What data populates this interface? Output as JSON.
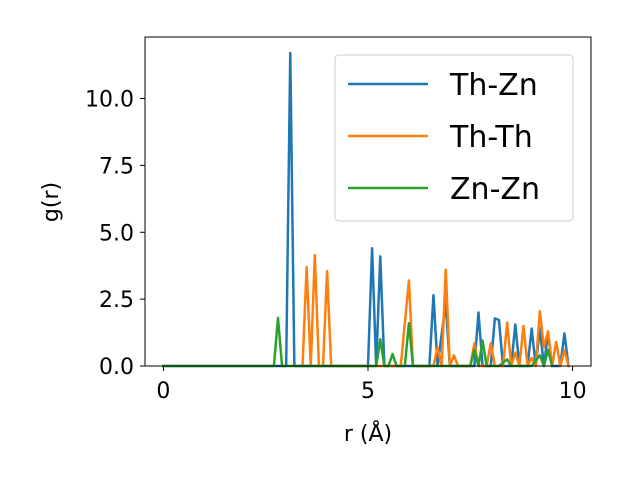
{
  "chart_data": {
    "type": "line",
    "xlabel": "r (Å)",
    "ylabel": "g(r)",
    "xlim": [
      -0.45,
      10.45
    ],
    "ylim": [
      0.0,
      12.3
    ],
    "xticks": [
      0,
      5,
      10
    ],
    "xtick_labels": [
      "0",
      "5",
      "10"
    ],
    "yticks": [
      0.0,
      2.5,
      5.0,
      7.5,
      10.0
    ],
    "ytick_labels": [
      "0.0",
      "2.5",
      "5.0",
      "7.5",
      "10.0"
    ],
    "grid": false,
    "legend_position": "top-right",
    "series": [
      {
        "name": "Th-Zn",
        "color": "#1f77b4",
        "points": [
          [
            0.0,
            0.0
          ],
          [
            3.0,
            0.0
          ],
          [
            3.1,
            11.7
          ],
          [
            3.2,
            0.0
          ],
          [
            5.0,
            0.0
          ],
          [
            5.1,
            4.4
          ],
          [
            5.2,
            0.0
          ],
          [
            5.3,
            4.1
          ],
          [
            5.4,
            0.0
          ],
          [
            6.5,
            0.0
          ],
          [
            6.6,
            2.65
          ],
          [
            6.7,
            0.0
          ],
          [
            6.9,
            2.35
          ],
          [
            7.0,
            0.0
          ],
          [
            7.6,
            0.0
          ],
          [
            7.7,
            2.0
          ],
          [
            7.8,
            0.0
          ],
          [
            8.0,
            0.0
          ],
          [
            8.1,
            1.78
          ],
          [
            8.2,
            1.72
          ],
          [
            8.3,
            0.0
          ],
          [
            8.5,
            0.0
          ],
          [
            8.6,
            1.55
          ],
          [
            8.7,
            0.0
          ],
          [
            8.9,
            0.0
          ],
          [
            9.0,
            1.4
          ],
          [
            9.1,
            0.0
          ],
          [
            9.2,
            1.4
          ],
          [
            9.3,
            0.0
          ],
          [
            9.4,
            1.25
          ],
          [
            9.5,
            0.0
          ],
          [
            9.7,
            0.0
          ],
          [
            9.8,
            1.22
          ],
          [
            9.9,
            0.0
          ]
        ]
      },
      {
        "name": "Th-Th",
        "color": "#ff7f0e",
        "points": [
          [
            3.4,
            0.0
          ],
          [
            3.5,
            3.7
          ],
          [
            3.6,
            0.0
          ],
          [
            3.7,
            4.15
          ],
          [
            3.8,
            0.0
          ],
          [
            3.9,
            0.0
          ],
          [
            4.0,
            3.55
          ],
          [
            4.1,
            0.0
          ],
          [
            5.8,
            0.0
          ],
          [
            6.0,
            3.2
          ],
          [
            6.1,
            0.0
          ],
          [
            6.6,
            0.0
          ],
          [
            6.7,
            0.7
          ],
          [
            6.8,
            0.0
          ],
          [
            6.9,
            3.6
          ],
          [
            7.0,
            0.0
          ],
          [
            7.1,
            0.4
          ],
          [
            7.2,
            0.0
          ],
          [
            7.5,
            0.0
          ],
          [
            7.6,
            0.85
          ],
          [
            7.7,
            0.0
          ],
          [
            7.9,
            0.0
          ],
          [
            8.0,
            0.85
          ],
          [
            8.1,
            0.0
          ],
          [
            8.3,
            0.0
          ],
          [
            8.4,
            1.62
          ],
          [
            8.5,
            0.0
          ],
          [
            8.6,
            0.5
          ],
          [
            8.7,
            0.0
          ],
          [
            8.8,
            1.5
          ],
          [
            8.9,
            0.0
          ],
          [
            9.0,
            0.3
          ],
          [
            9.1,
            0.0
          ],
          [
            9.2,
            2.05
          ],
          [
            9.3,
            0.7
          ],
          [
            9.4,
            1.3
          ],
          [
            9.5,
            0.0
          ],
          [
            9.6,
            0.9
          ],
          [
            9.7,
            0.0
          ],
          [
            9.8,
            0.6
          ],
          [
            9.9,
            0.0
          ]
        ]
      },
      {
        "name": "Zn-Zn",
        "color": "#2ca02c",
        "points": [
          [
            0.0,
            0.0
          ],
          [
            2.7,
            0.0
          ],
          [
            2.8,
            1.8
          ],
          [
            2.9,
            0.0
          ],
          [
            5.2,
            0.0
          ],
          [
            5.3,
            1.0
          ],
          [
            5.4,
            0.0
          ],
          [
            5.5,
            0.0
          ],
          [
            5.6,
            0.45
          ],
          [
            5.7,
            0.0
          ],
          [
            5.9,
            0.0
          ],
          [
            6.0,
            1.6
          ],
          [
            6.1,
            0.0
          ],
          [
            7.5,
            0.0
          ],
          [
            7.6,
            0.6
          ],
          [
            7.7,
            0.0
          ],
          [
            7.8,
            0.95
          ],
          [
            7.9,
            0.0
          ],
          [
            8.1,
            0.0
          ],
          [
            8.2,
            0.0
          ],
          [
            8.4,
            0.25
          ],
          [
            8.5,
            0.0
          ],
          [
            9.0,
            0.0
          ],
          [
            9.2,
            0.4
          ],
          [
            9.3,
            0.0
          ],
          [
            9.4,
            0.6
          ],
          [
            9.5,
            0.0
          ]
        ]
      }
    ]
  }
}
